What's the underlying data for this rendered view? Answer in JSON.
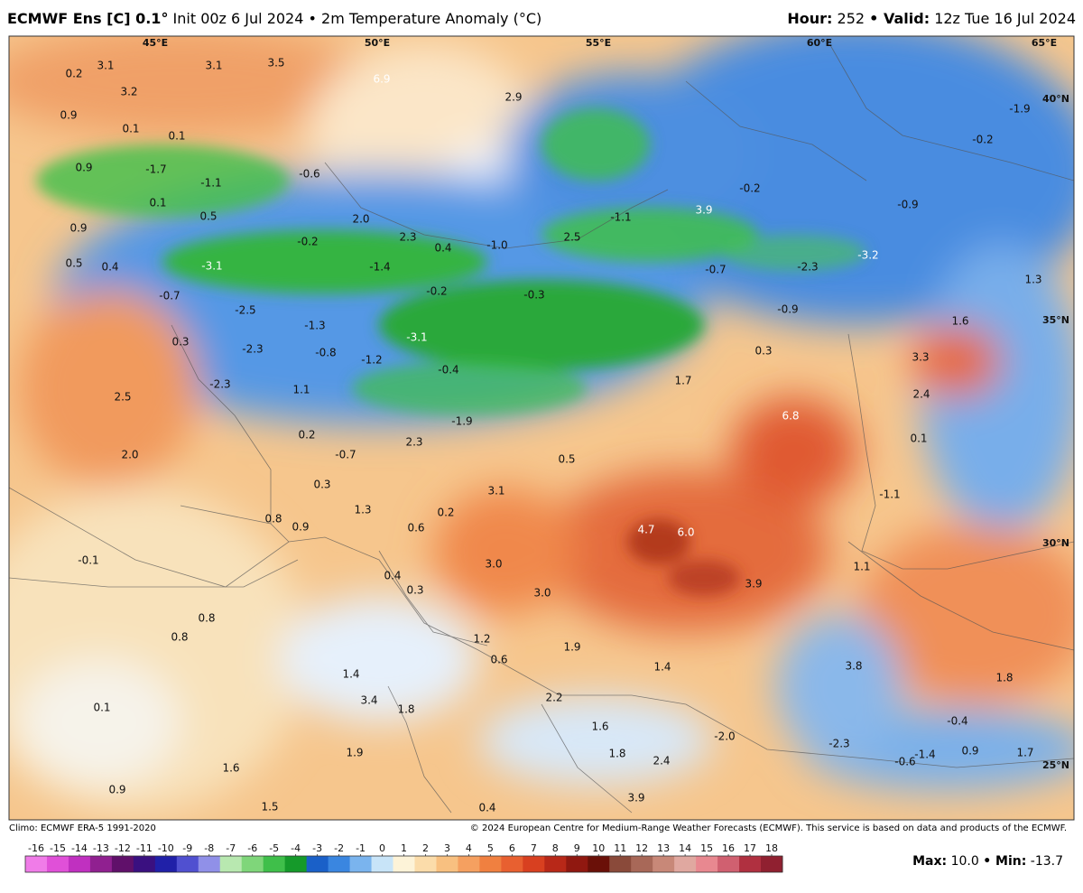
{
  "header": {
    "model": "ECMWF Ens [C] 0.1°",
    "init": "Init 00z 6 Jul 2024",
    "variable": "• 2m Temperature Anomaly (°C)",
    "hour_label": "Hour:",
    "hour": "252",
    "valid_label": "• Valid:",
    "valid": "12z Tue 16 Jul 2024"
  },
  "grid_labels": [
    "45°E",
    "50°E",
    "55°E",
    "60°E",
    "65°E",
    "40°N",
    "35°N",
    "30°N",
    "25°N"
  ],
  "map_labels": [
    "0.2",
    "3.1",
    "3.1",
    "3.5",
    "6.9",
    "3.2",
    "0.9",
    "0.1",
    "0.1",
    "0.9",
    "-1.7",
    "-1.1",
    "-0.6",
    "0.1",
    "0.5",
    "0.9",
    "0.5",
    "0.4",
    "-3.1",
    "-0.2",
    "2.0",
    "2.3",
    "0.4",
    "-1.0",
    "2.5",
    "2.9",
    "-1.1",
    "3.9",
    "-0.2",
    "-0.9",
    "-1.9",
    "-0.2",
    "-3.2",
    "-2.3",
    "-0.7",
    "-0.9",
    "-1.4",
    "-0.2",
    "-0.3",
    "-0.7",
    "-2.5",
    "-1.3",
    "-3.1",
    "0.3",
    "-2.3",
    "-0.8",
    "-1.2",
    "-0.4",
    "-2.3",
    "1.1",
    "2.5",
    "1.7",
    "0.3",
    "1.3",
    "1.6",
    "3.3",
    "2.4",
    "6.8",
    "-1.9",
    "0.2",
    "2.3",
    "-0.7",
    "0.1",
    "2.0",
    "0.5",
    "0.3",
    "3.1",
    "-1.1",
    "0.8",
    "0.9",
    "1.3",
    "0.2",
    "0.6",
    "4.7",
    "6.0",
    "-0.1",
    "1.1",
    "3.0",
    "0.4",
    "0.3",
    "3.0",
    "3.9",
    "0.8",
    "0.8",
    "1.2",
    "0.6",
    "1.9",
    "3.8",
    "1.4",
    "1.4",
    "1.8",
    "3.4",
    "1.8",
    "2.2",
    "0.1",
    "1.6",
    "-2.0",
    "-0.4",
    "1.9",
    "1.8",
    "2.4",
    "-2.3",
    "-0.6",
    "-1.4",
    "0.9",
    "1.7",
    "1.6",
    "0.9",
    "0.4",
    "3.9",
    "1.5"
  ],
  "footer": {
    "climo": "Climo: ECMWF ERA-5 1991-2020",
    "credit": "© 2024 European Centre for Medium-Range Weather Forecasts (ECMWF). This service is based on data and products of the ECMWF."
  },
  "colorbar": {
    "ticks": [
      -16,
      -15,
      -14,
      -13,
      -12,
      -11,
      -10,
      -9,
      -8,
      -7,
      -6,
      -5,
      -4,
      -3,
      -2,
      -1,
      0,
      1,
      2,
      3,
      4,
      5,
      6,
      7,
      8,
      9,
      10,
      11,
      12,
      13,
      14,
      15,
      16,
      17,
      18
    ],
    "colors": [
      "#f07ce8",
      "#e050d8",
      "#c030c0",
      "#902090",
      "#60106a",
      "#3a1080",
      "#2020a8",
      "#5050d0",
      "#9090e8",
      "#b8e8b0",
      "#7fd67a",
      "#3fbf4a",
      "#159a2a",
      "#1a60c8",
      "#3a86e0",
      "#7ab4ee",
      "#c8e4f8",
      "#fdf3d8",
      "#fbdcaa",
      "#f8c080",
      "#f5a060",
      "#f08040",
      "#e86030",
      "#d84020",
      "#b82818",
      "#901810",
      "#6a1008",
      "#8a4a3a",
      "#a86858",
      "#c88878",
      "#e0a8a0",
      "#e88890",
      "#d06070",
      "#b03040",
      "#902030"
    ]
  },
  "stats": {
    "max_label": "Max:",
    "max": {
      "value": 10,
      "label": "10.0"
    },
    "min_label": "• Min:",
    "min": -13.7
  }
}
